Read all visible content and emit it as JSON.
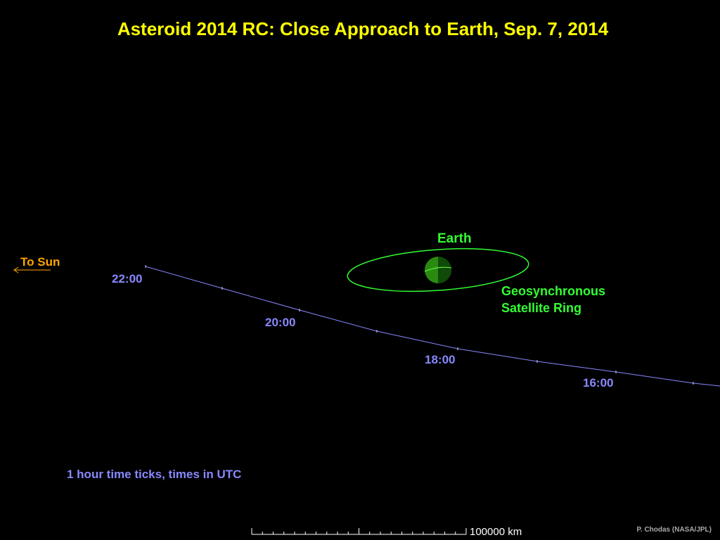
{
  "title": "Asteroid 2014 RC:  Close Approach to Earth, Sep. 7, 2014",
  "earth_label": "Earth",
  "geo_ring_label_1": "Geosynchronous",
  "geo_ring_label_2": "Satellite Ring",
  "sun_label": "To Sun",
  "time_labels": [
    "22:00",
    "20:00",
    "18:00",
    "16:00"
  ],
  "note": "1 hour time ticks, times in UTC",
  "scale_label": "100000 km",
  "credit": "P. Chodas (NASA/JPL)",
  "colors": {
    "title": "#ffff00",
    "earth_label": "#33ff33",
    "trajectory": "#8888ff",
    "sun": "#ffa500",
    "earth_light": "#2a8a10",
    "earth_dark": "#0f4a08"
  }
}
